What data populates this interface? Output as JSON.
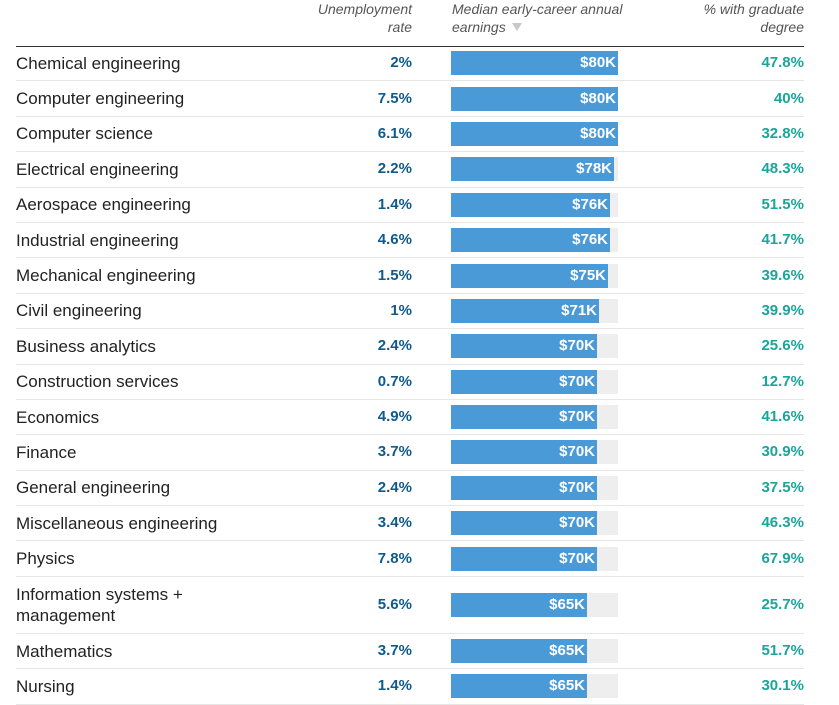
{
  "chart_data": {
    "type": "table",
    "columns": {
      "major": "",
      "unemployment": "Unemployment rate",
      "earnings": "Median early-career annual earnings",
      "graduate": "% with graduate degree"
    },
    "sort": {
      "column": "earnings",
      "direction": "descending"
    },
    "earnings_max": 80000,
    "rows": [
      {
        "major": "Chemical engineering",
        "unemployment": "2%",
        "earnings": 80000,
        "earnings_label": "$80K",
        "graduate": "47.8%"
      },
      {
        "major": "Computer engineering",
        "unemployment": "7.5%",
        "earnings": 80000,
        "earnings_label": "$80K",
        "graduate": "40%"
      },
      {
        "major": "Computer science",
        "unemployment": "6.1%",
        "earnings": 80000,
        "earnings_label": "$80K",
        "graduate": "32.8%"
      },
      {
        "major": "Electrical engineering",
        "unemployment": "2.2%",
        "earnings": 78000,
        "earnings_label": "$78K",
        "graduate": "48.3%"
      },
      {
        "major": "Aerospace engineering",
        "unemployment": "1.4%",
        "earnings": 76000,
        "earnings_label": "$76K",
        "graduate": "51.5%"
      },
      {
        "major": "Industrial engineering",
        "unemployment": "4.6%",
        "earnings": 76000,
        "earnings_label": "$76K",
        "graduate": "41.7%"
      },
      {
        "major": "Mechanical engineering",
        "unemployment": "1.5%",
        "earnings": 75000,
        "earnings_label": "$75K",
        "graduate": "39.6%"
      },
      {
        "major": "Civil engineering",
        "unemployment": "1%",
        "earnings": 71000,
        "earnings_label": "$71K",
        "graduate": "39.9%"
      },
      {
        "major": "Business analytics",
        "unemployment": "2.4%",
        "earnings": 70000,
        "earnings_label": "$70K",
        "graduate": "25.6%"
      },
      {
        "major": "Construction services",
        "unemployment": "0.7%",
        "earnings": 70000,
        "earnings_label": "$70K",
        "graduate": "12.7%"
      },
      {
        "major": "Economics",
        "unemployment": "4.9%",
        "earnings": 70000,
        "earnings_label": "$70K",
        "graduate": "41.6%"
      },
      {
        "major": "Finance",
        "unemployment": "3.7%",
        "earnings": 70000,
        "earnings_label": "$70K",
        "graduate": "30.9%"
      },
      {
        "major": "General engineering",
        "unemployment": "2.4%",
        "earnings": 70000,
        "earnings_label": "$70K",
        "graduate": "37.5%"
      },
      {
        "major": "Miscellaneous engineering",
        "unemployment": "3.4%",
        "earnings": 70000,
        "earnings_label": "$70K",
        "graduate": "46.3%"
      },
      {
        "major": "Physics",
        "unemployment": "7.8%",
        "earnings": 70000,
        "earnings_label": "$70K",
        "graduate": "67.9%"
      },
      {
        "major": "Information systems + management",
        "unemployment": "5.6%",
        "earnings": 65000,
        "earnings_label": "$65K",
        "graduate": "25.7%"
      },
      {
        "major": "Mathematics",
        "unemployment": "3.7%",
        "earnings": 65000,
        "earnings_label": "$65K",
        "graduate": "51.7%"
      },
      {
        "major": "Nursing",
        "unemployment": "1.4%",
        "earnings": 65000,
        "earnings_label": "$65K",
        "graduate": "30.1%"
      }
    ]
  },
  "colors": {
    "bar": "#4b9ad8",
    "bar_track": "#eeeeee",
    "unemployment_text": "#0f5a8c",
    "graduate_text": "#1aa59a"
  },
  "icons": {
    "sort": "sort-descending-icon"
  }
}
